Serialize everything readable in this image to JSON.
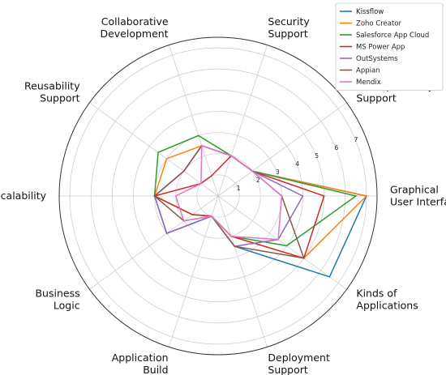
{
  "chart_data": {
    "type": "radar",
    "axes": [
      [
        "Graphical",
        "User Interface"
      ],
      [
        "Interoperability",
        "Support"
      ],
      [
        "Security",
        "Support"
      ],
      [
        "Collaborative",
        "Development"
      ],
      [
        "Reusability",
        "Support"
      ],
      [
        "Scalability"
      ],
      [
        "Business",
        "Logic"
      ],
      [
        "Application",
        "Build"
      ],
      [
        "Deployment",
        "Support"
      ],
      [
        "Kinds of",
        "Applications"
      ]
    ],
    "rlim": [
      0,
      7.5
    ],
    "rticks": [
      "1",
      "2",
      "3",
      "4",
      "5",
      "6",
      "7"
    ],
    "legend_position": "top-right",
    "series": [
      {
        "name": "Kissflow",
        "color": "#1f77b4",
        "values": [
          7.0,
          2.0,
          2.0,
          2.5,
          2.0,
          3.0,
          3.0,
          1.0,
          2.5,
          6.5
        ]
      },
      {
        "name": "Zoho Creator",
        "color": "#ff7f0e",
        "values": [
          7.0,
          2.0,
          2.0,
          2.5,
          3.0,
          3.0,
          1.5,
          1.0,
          2.0,
          5.0
        ]
      },
      {
        "name": "Salesforce App Cloud",
        "color": "#2ca02c",
        "values": [
          6.5,
          2.0,
          2.0,
          3.0,
          3.5,
          3.0,
          1.5,
          1.0,
          2.0,
          4.0
        ]
      },
      {
        "name": "MS Power App",
        "color": "#d62728",
        "values": [
          5.0,
          2.0,
          2.0,
          1.0,
          1.0,
          3.0,
          1.5,
          1.0,
          2.0,
          5.0
        ]
      },
      {
        "name": "OutSystems",
        "color": "#9467bd",
        "values": [
          4.0,
          2.0,
          2.0,
          2.5,
          2.0,
          3.0,
          3.0,
          1.0,
          2.5,
          3.5
        ]
      },
      {
        "name": "Appian",
        "color": "#8c564b",
        "values": [
          3.0,
          2.0,
          2.0,
          2.5,
          2.0,
          3.0,
          2.0,
          1.0,
          2.5,
          5.0
        ]
      },
      {
        "name": "Mendix",
        "color": "#e377c2",
        "values": [
          3.0,
          2.0,
          2.0,
          2.5,
          1.0,
          2.0,
          2.0,
          1.0,
          2.0,
          3.5
        ]
      }
    ]
  }
}
